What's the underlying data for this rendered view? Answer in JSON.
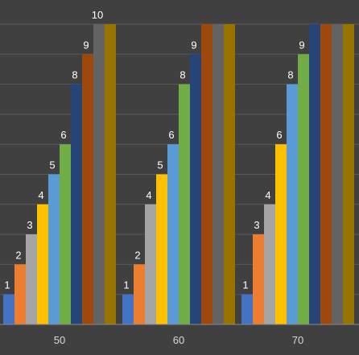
{
  "colors": {
    "background": "#404040",
    "grid": "#5a5a5a",
    "axis": "#8a8a8a",
    "series": [
      "#4472c4",
      "#ed7d31",
      "#a5a5a5",
      "#ffc000",
      "#5b9bd5",
      "#70ad47",
      "#264478",
      "#9e480e",
      "#636363",
      "#997300"
    ]
  },
  "chart_data": {
    "type": "bar",
    "title": "",
    "xlabel": "",
    "ylabel": "",
    "categories": [
      "50",
      "60",
      "70"
    ],
    "ylim": [
      0,
      10
    ],
    "grid": true,
    "legend": "none",
    "series": [
      {
        "values": [
          1,
          1,
          1
        ],
        "labels": [
          "1",
          "1",
          "1"
        ]
      },
      {
        "values": [
          2,
          2,
          3
        ],
        "labels": [
          "2",
          "2",
          "3"
        ]
      },
      {
        "values": [
          3,
          4,
          4
        ],
        "labels": [
          "3",
          "4",
          "4"
        ]
      },
      {
        "values": [
          4,
          5,
          6
        ],
        "labels": [
          "4",
          "5",
          "6"
        ]
      },
      {
        "values": [
          5,
          6,
          8
        ],
        "labels": [
          "5",
          "6",
          "8"
        ]
      },
      {
        "values": [
          6,
          8,
          9
        ],
        "labels": [
          "6",
          "8",
          "9"
        ]
      },
      {
        "values": [
          8,
          9,
          10
        ],
        "labels": [
          "8",
          "9",
          ""
        ]
      },
      {
        "values": [
          9,
          10,
          10
        ],
        "labels": [
          "9",
          "",
          ""
        ]
      },
      {
        "values": [
          10,
          10,
          10
        ],
        "labels": [
          "10",
          "",
          ""
        ]
      },
      {
        "values": [
          10,
          10,
          10
        ],
        "labels": [
          "",
          "",
          ""
        ]
      }
    ]
  }
}
